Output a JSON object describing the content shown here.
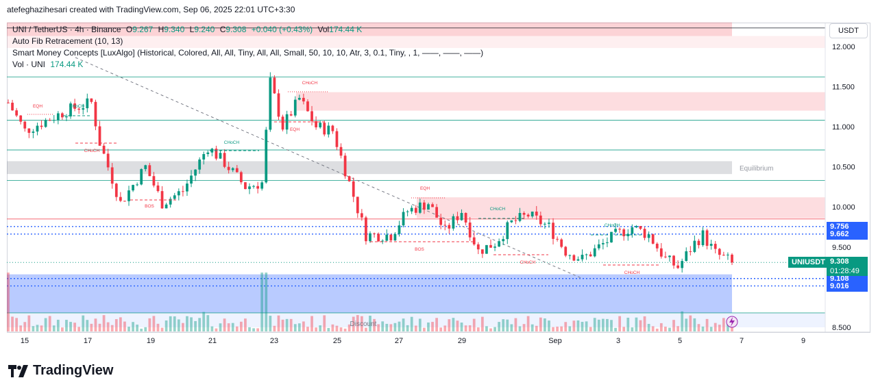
{
  "credit": "atefeghazihesari created with TradingView.com, Sep 06, 2025 22:01 UTC+3:30",
  "legend": {
    "symbol": "UNI / TetherUS · 4h · Binance",
    "o_label": "O",
    "o": "9.267",
    "h_label": "H",
    "h": "9.340",
    "l_label": "L",
    "l": "9.240",
    "c_label": "C",
    "c": "9.308",
    "change": "+0.040 (+0.43%)",
    "vol_label": "Vol",
    "vol": "174.44 K",
    "fib": "Auto Fib Retracement (10, 13)",
    "smc": "Smart Money Concepts [LuxAlgo] (Historical, Colored, All, All, Tiny, All, All, Small, 50, 10, 10, Atr, 3, 0.1, Tiny, , 1, ——, ——, ——)",
    "vol_name": "Vol · UNI",
    "vol_value": "174.44 K"
  },
  "currency": "USDT",
  "price_axis": [
    "12.000",
    "11.500",
    "11.000",
    "10.500",
    "10.000",
    "9.500",
    "8.500"
  ],
  "price_tags": [
    {
      "label": "9.756",
      "value": 9.756,
      "color": "#2962ff"
    },
    {
      "label": "9.662",
      "value": 9.662,
      "color": "#2962ff"
    },
    {
      "label": "9.108",
      "value": 9.108,
      "color": "#2962ff"
    },
    {
      "label": "9.016",
      "value": 9.016,
      "color": "#2962ff"
    }
  ],
  "last_price": {
    "symbol": "UNIUSDT",
    "price": "9.308",
    "countdown": "01:28:49",
    "color": "#089981"
  },
  "time_axis": [
    "15",
    "17",
    "19",
    "21",
    "23",
    "25",
    "27",
    "29",
    "Sep",
    "3",
    "5",
    "7",
    "9"
  ],
  "smc_labels": [
    "EQH",
    "CHoCH",
    "CHoCH",
    "BOS",
    "CHoCH",
    "EQH",
    "CHoCH",
    "EQH",
    "BOS",
    "CHoCH",
    "CHoCH",
    "CHoCH",
    "CHoCH"
  ],
  "zone_labels": {
    "equilibrium": "Equilibrium",
    "discount": "Discount"
  },
  "brand": "TradingView",
  "chart_data": {
    "type": "candlestick",
    "title": "UNI / TetherUS · 4h · Binance",
    "ylim": [
      8.45,
      12.3
    ],
    "y_ticks": [
      12.0,
      11.5,
      11.0,
      10.5,
      10.0,
      9.5,
      8.5
    ],
    "x_ticks": [
      "15",
      "17",
      "19",
      "21",
      "23",
      "25",
      "27",
      "29",
      "Sep",
      "3",
      "5",
      "7",
      "9"
    ],
    "colors": {
      "up": "#089981",
      "down": "#f23645"
    },
    "key_prices": [
      {
        "price": 9.756,
        "style": "dotted",
        "color": "#2962ff"
      },
      {
        "price": 9.662,
        "style": "dotted",
        "color": "#2962ff"
      },
      {
        "price": 9.108,
        "style": "dotted",
        "color": "#2962ff"
      },
      {
        "price": 9.016,
        "style": "dotted",
        "color": "#2962ff"
      }
    ],
    "last_close": 9.308,
    "candles": {
      "shape": "approximate 4h candles, Aug 14 – Sep 6 2025",
      "anchors": [
        [
          0,
          11.3
        ],
        [
          4,
          10.95
        ],
        [
          8,
          11.05
        ],
        [
          14,
          11.2
        ],
        [
          20,
          11.3
        ],
        [
          22,
          10.8
        ],
        [
          27,
          10.05
        ],
        [
          33,
          10.5
        ],
        [
          37,
          10.05
        ],
        [
          42,
          10.2
        ],
        [
          48,
          10.75
        ],
        [
          52,
          10.55
        ],
        [
          57,
          10.25
        ],
        [
          61,
          10.3
        ],
        [
          63,
          11.55
        ],
        [
          66,
          11.0
        ],
        [
          70,
          11.35
        ],
        [
          74,
          11.0
        ],
        [
          78,
          10.95
        ],
        [
          82,
          10.3
        ],
        [
          86,
          9.65
        ],
        [
          92,
          9.65
        ],
        [
          96,
          9.95
        ],
        [
          101,
          10.05
        ],
        [
          105,
          9.7
        ],
        [
          109,
          9.95
        ],
        [
          113,
          9.45
        ],
        [
          117,
          9.55
        ],
        [
          121,
          9.8
        ],
        [
          125,
          9.9
        ],
        [
          130,
          9.75
        ],
        [
          134,
          9.45
        ],
        [
          138,
          9.35
        ],
        [
          142,
          9.5
        ],
        [
          146,
          9.65
        ],
        [
          150,
          9.75
        ],
        [
          154,
          9.65
        ],
        [
          158,
          9.35
        ],
        [
          161,
          9.25
        ],
        [
          165,
          9.55
        ],
        [
          167,
          9.65
        ],
        [
          170,
          9.42
        ],
        [
          174,
          9.31
        ]
      ]
    },
    "volume": {
      "last": "174.44 K"
    }
  }
}
